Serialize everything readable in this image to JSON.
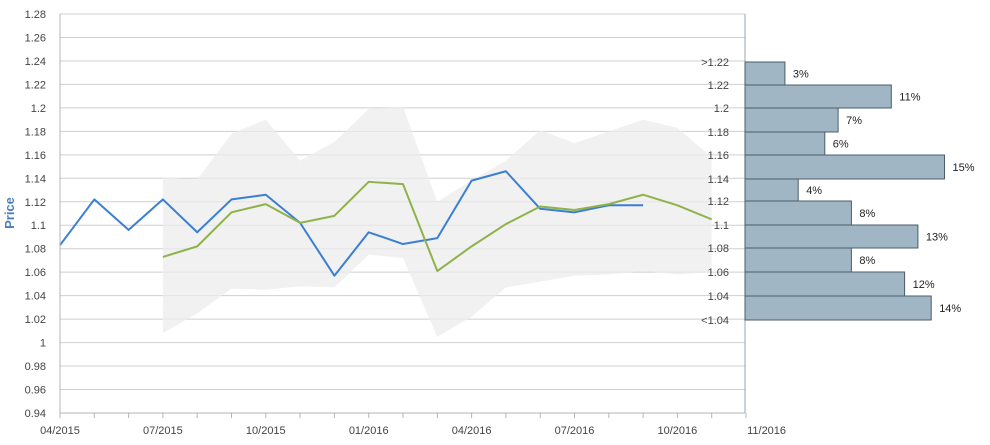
{
  "chart_data": {
    "type": "line",
    "ylabel": "Price",
    "ylim": [
      0.94,
      1.28
    ],
    "y_ticks": [
      "0.94",
      "0.96",
      "0.98",
      "1",
      "1.02",
      "1.04",
      "1.06",
      "1.08",
      "1.1",
      "1.12",
      "1.14",
      "1.16",
      "1.18",
      "1.2",
      "1.22",
      "1.24",
      "1.26",
      "1.28"
    ],
    "x_ticks": [
      "04/2015",
      "07/2015",
      "10/2015",
      "01/2016",
      "04/2016",
      "07/2016",
      "10/2016",
      "11/2016"
    ],
    "x": [
      "2015-04",
      "2015-05",
      "2015-06",
      "2015-07",
      "2015-08",
      "2015-09",
      "2015-10",
      "2015-11",
      "2015-12",
      "2016-01",
      "2016-02",
      "2016-03",
      "2016-04",
      "2016-05",
      "2016-06",
      "2016-07",
      "2016-08",
      "2016-09",
      "2016-10",
      "2016-11"
    ],
    "series": [
      {
        "color": "#3b7fd0",
        "values": [
          1.083,
          1.122,
          1.096,
          1.122,
          1.094,
          1.122,
          1.126,
          1.102,
          1.057,
          1.094,
          1.084,
          1.089,
          1.138,
          1.146,
          1.114,
          1.111,
          1.117,
          1.117,
          null,
          null
        ]
      },
      {
        "color": "#8fb24a",
        "values": [
          null,
          null,
          null,
          1.073,
          1.082,
          1.111,
          1.118,
          1.102,
          1.108,
          1.137,
          1.135,
          1.061,
          1.082,
          1.101,
          1.116,
          1.113,
          1.118,
          1.126,
          1.117,
          1.105
        ]
      }
    ],
    "band": {
      "color": "#ececec",
      "x_start_index": 3,
      "upper": [
        1.141,
        1.139,
        1.178,
        1.19,
        1.155,
        1.171,
        1.199,
        1.201,
        1.12,
        1.138,
        1.155,
        1.181,
        1.17,
        1.18,
        1.19,
        1.183,
        1.158
      ],
      "lower": [
        1.008,
        1.025,
        1.046,
        1.045,
        1.048,
        1.047,
        1.075,
        1.072,
        1.005,
        1.022,
        1.047,
        1.052,
        1.057,
        1.058,
        1.061,
        1.058,
        1.06
      ]
    },
    "histogram": {
      "type": "bar",
      "orientation": "horizontal",
      "color": "#a0b6c4",
      "categories": [
        ">1.22",
        "1.22",
        "1.2",
        "1.18",
        "1.16",
        "1.14",
        "1.12",
        "1.1",
        "1.08",
        "1.06",
        "1.04",
        "<1.04"
      ],
      "values": [
        3,
        11,
        7,
        6,
        15,
        4,
        8,
        13,
        8,
        12,
        14
      ],
      "labels": [
        "3%",
        "11%",
        "7%",
        "6%",
        "15%",
        "4%",
        "8%",
        "13%",
        "8%",
        "12%",
        "14%"
      ]
    }
  }
}
